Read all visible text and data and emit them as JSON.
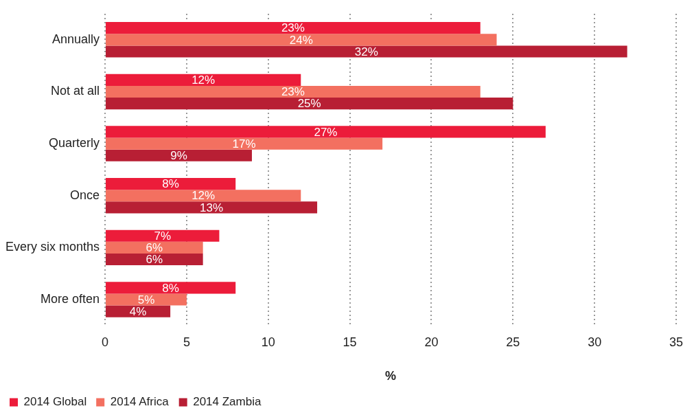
{
  "chart_data": {
    "type": "bar",
    "orientation": "horizontal",
    "xlabel": "%",
    "categories": [
      "Annually",
      "Not at all",
      "Quarterly",
      "Once",
      "Every six months",
      "More often"
    ],
    "series": [
      {
        "name": "2014 Global",
        "color": "#ec1c3a",
        "values": [
          23,
          12,
          27,
          8,
          7,
          8
        ],
        "value_labels": [
          "23%",
          "12%",
          "27%",
          "8%",
          "7%",
          "8%"
        ]
      },
      {
        "name": "2014 Africa",
        "color": "#f37060",
        "values": [
          24,
          23,
          17,
          12,
          6,
          5
        ],
        "value_labels": [
          "24%",
          "23%",
          "17%",
          "12%",
          "6%",
          "5%"
        ]
      },
      {
        "name": "2014 Zambia",
        "color": "#b81f34",
        "values": [
          32,
          25,
          9,
          13,
          6,
          4
        ],
        "value_labels": [
          "32%",
          "25%",
          "9%",
          "13%",
          "6%",
          "4%"
        ]
      }
    ],
    "xlim": [
      0,
      35
    ],
    "xticks": [
      0,
      5,
      10,
      15,
      20,
      25,
      30,
      35
    ],
    "grid": "x",
    "legend": "bottom left"
  }
}
